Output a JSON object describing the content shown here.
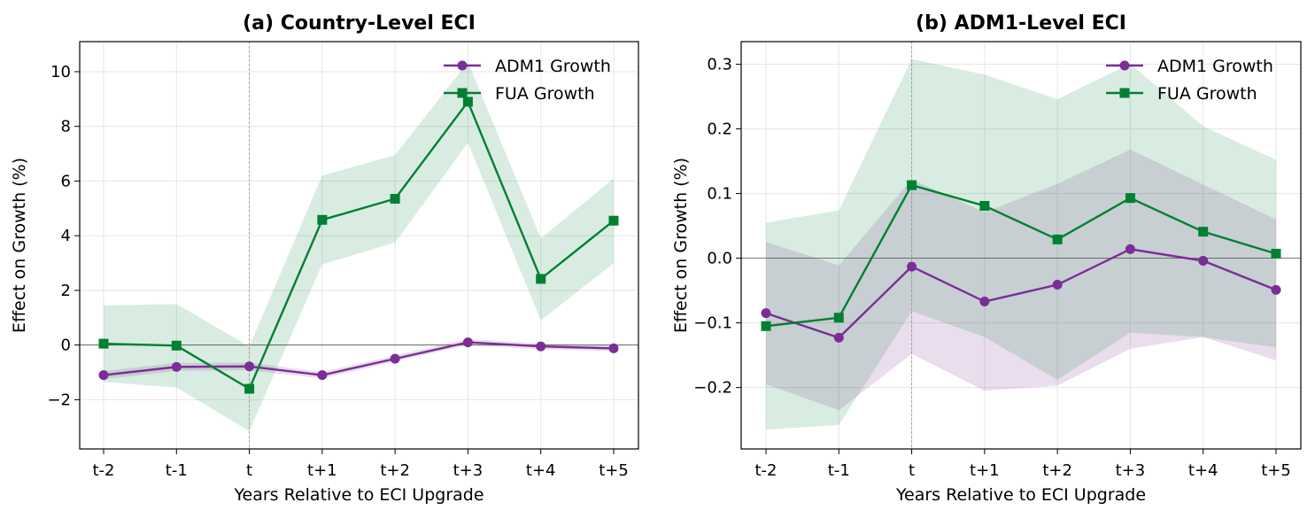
{
  "chart_data": [
    {
      "type": "line",
      "title": "(a) Country-Level ECI",
      "xlabel": "Years Relative to ECI Upgrade",
      "ylabel": "Effect on Growth (%)",
      "categories": [
        "t-2",
        "t-1",
        "t",
        "t+1",
        "t+2",
        "t+3",
        "t+4",
        "t+5"
      ],
      "ylim": [
        -3.8,
        11.1
      ],
      "yticks": [
        -2,
        0,
        2,
        4,
        6,
        8,
        10
      ],
      "ytick_labels": [
        "−2",
        "0",
        "2",
        "4",
        "6",
        "8",
        "10"
      ],
      "reference_line": 0,
      "vertical_reference": "t",
      "legend_position": "top-right",
      "series": [
        {
          "name": "ADM1 Growth",
          "color": "#7b2d96",
          "marker": "circle",
          "values": [
            -1.1,
            -0.8,
            -0.78,
            -1.1,
            -0.5,
            0.1,
            -0.05,
            -0.12
          ],
          "ci_lower": [
            -1.25,
            -0.95,
            -0.92,
            -1.22,
            -0.6,
            0.0,
            -0.15,
            -0.22
          ],
          "ci_upper": [
            -0.95,
            -0.65,
            -0.64,
            -0.98,
            -0.38,
            0.22,
            0.05,
            -0.02
          ]
        },
        {
          "name": "FUA Growth",
          "color": "#008033",
          "marker": "square",
          "values": [
            0.05,
            -0.02,
            -1.6,
            4.58,
            5.35,
            8.9,
            2.42,
            4.55
          ],
          "ci_lower": [
            -1.35,
            -1.55,
            -3.15,
            2.95,
            3.75,
            7.4,
            0.9,
            3.0
          ],
          "ci_upper": [
            1.45,
            1.5,
            -0.05,
            6.2,
            6.95,
            10.35,
            3.9,
            6.1
          ]
        }
      ]
    },
    {
      "type": "line",
      "title": "(b) ADM1-Level ECI",
      "xlabel": "Years Relative to ECI Upgrade",
      "ylabel": "Effect on Growth (%)",
      "categories": [
        "t-2",
        "t-1",
        "t",
        "t+1",
        "t+2",
        "t+3",
        "t+4",
        "t+5"
      ],
      "ylim": [
        -0.295,
        0.335
      ],
      "yticks": [
        -0.2,
        -0.1,
        0.0,
        0.1,
        0.2,
        0.3
      ],
      "ytick_labels": [
        "−0.2",
        "−0.1",
        "0.0",
        "0.1",
        "0.2",
        "0.3"
      ],
      "reference_line": 0,
      "vertical_reference": "t",
      "legend_position": "top-right",
      "series": [
        {
          "name": "ADM1 Growth",
          "color": "#7b2d96",
          "marker": "circle",
          "values": [
            -0.085,
            -0.123,
            -0.013,
            -0.067,
            -0.041,
            0.014,
            -0.004,
            -0.049
          ],
          "ci_lower": [
            -0.195,
            -0.235,
            -0.148,
            -0.205,
            -0.197,
            -0.14,
            -0.122,
            -0.158
          ],
          "ci_upper": [
            0.025,
            -0.011,
            0.122,
            0.071,
            0.115,
            0.168,
            0.114,
            0.06
          ]
        },
        {
          "name": "FUA Growth",
          "color": "#008033",
          "marker": "square",
          "values": [
            -0.105,
            -0.092,
            0.113,
            0.081,
            0.029,
            0.093,
            0.041,
            0.007
          ],
          "ci_lower": [
            -0.265,
            -0.258,
            -0.082,
            -0.122,
            -0.188,
            -0.115,
            -0.122,
            -0.138
          ],
          "ci_upper": [
            0.055,
            0.074,
            0.308,
            0.284,
            0.246,
            0.301,
            0.204,
            0.152
          ]
        }
      ]
    }
  ]
}
